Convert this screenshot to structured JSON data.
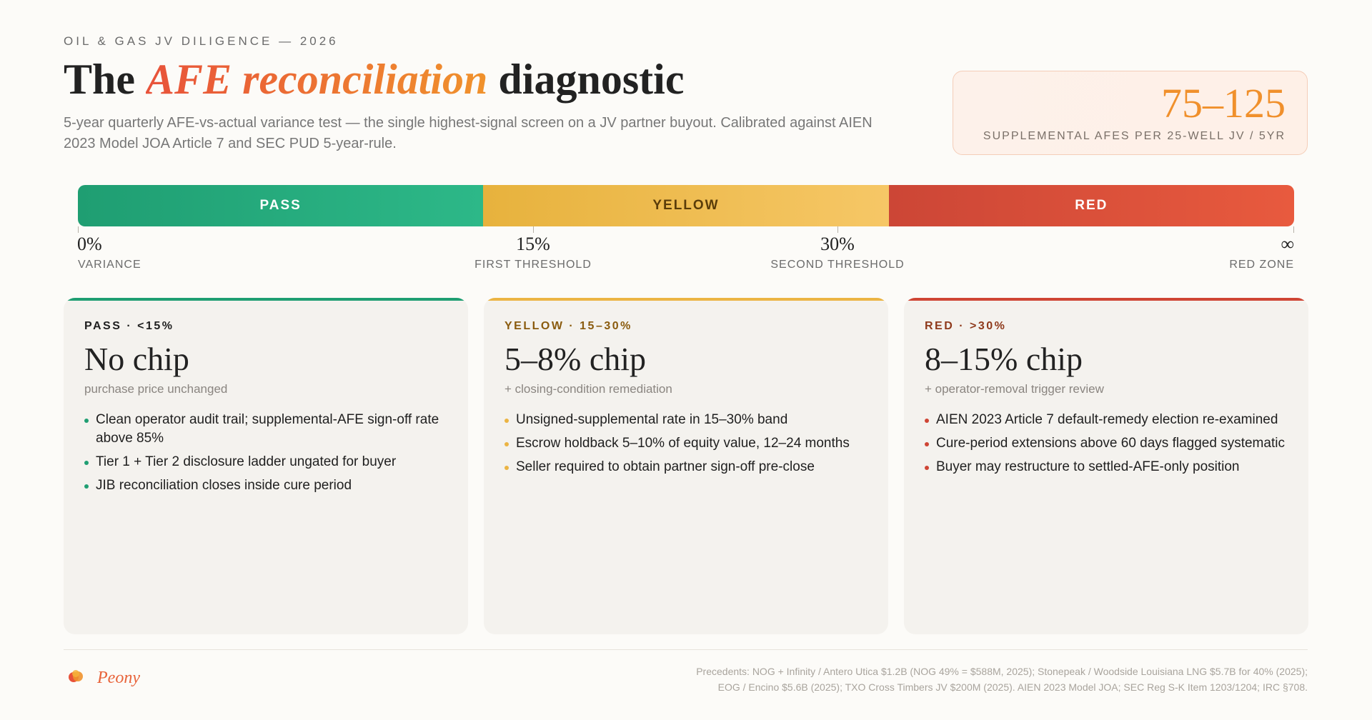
{
  "header": {
    "eyebrow": "OIL & GAS JV DILIGENCE — 2026",
    "title_prefix": "The",
    "title_accent": "AFE reconciliation",
    "title_suffix": "diagnostic",
    "subtitle": "5-year quarterly AFE-vs-actual variance test — the single highest-signal screen on a JV partner buyout. Calibrated against AIEN 2023 Model JOA Article 7 and SEC PUD 5-year-rule."
  },
  "stat": {
    "value": "75–125",
    "label": "SUPPLEMENTAL AFES PER 25-WELL JV / 5YR"
  },
  "scale": {
    "segments": [
      "PASS",
      "YELLOW",
      "RED"
    ],
    "ticks": [
      {
        "value": "0%",
        "label": "VARIANCE"
      },
      {
        "value": "15%",
        "label": "FIRST THRESHOLD"
      },
      {
        "value": "30%",
        "label": "SECOND THRESHOLD"
      },
      {
        "value": "∞",
        "label": "RED ZONE"
      }
    ]
  },
  "cards": [
    {
      "tag": "PASS · <15%",
      "headline": "No chip",
      "sub": "purchase price unchanged",
      "items": [
        "Clean operator audit trail; supplemental-AFE sign-off rate above 85%",
        "Tier 1 + Tier 2 disclosure ladder ungated for buyer",
        "JIB reconciliation closes inside cure period"
      ]
    },
    {
      "tag": "YELLOW · 15–30%",
      "headline": "5–8% chip",
      "sub": "+ closing-condition remediation",
      "items": [
        "Unsigned-supplemental rate in 15–30% band",
        "Escrow holdback 5–10% of equity value, 12–24 months",
        "Seller required to obtain partner sign-off pre-close"
      ]
    },
    {
      "tag": "RED · >30%",
      "headline": "8–15% chip",
      "sub": "+ operator-removal trigger review",
      "items": [
        "AIEN 2023 Article 7 default-remedy election re-examined",
        "Cure-period extensions above 60 days flagged systematic",
        "Buyer may restructure to settled-AFE-only position"
      ]
    }
  ],
  "footer": {
    "brand": "Peony",
    "logo_icon": "peony-logo-icon",
    "precedents_line1": "Precedents: NOG + Infinity / Antero Utica $1.2B (NOG 49% = $588M, 2025); Stonepeak / Woodside Louisiana LNG $5.7B for 40% (2025);",
    "precedents_line2": "EOG / Encino $5.6B (2025); TXO Cross Timbers JV $200M (2025). AIEN 2023 Model JOA; SEC Reg S-K Item 1203/1204; IRC §708."
  },
  "colors": {
    "pass": "#1f9e72",
    "yellow": "#ebb443",
    "red": "#cf4534",
    "accent": "#f0902c"
  }
}
